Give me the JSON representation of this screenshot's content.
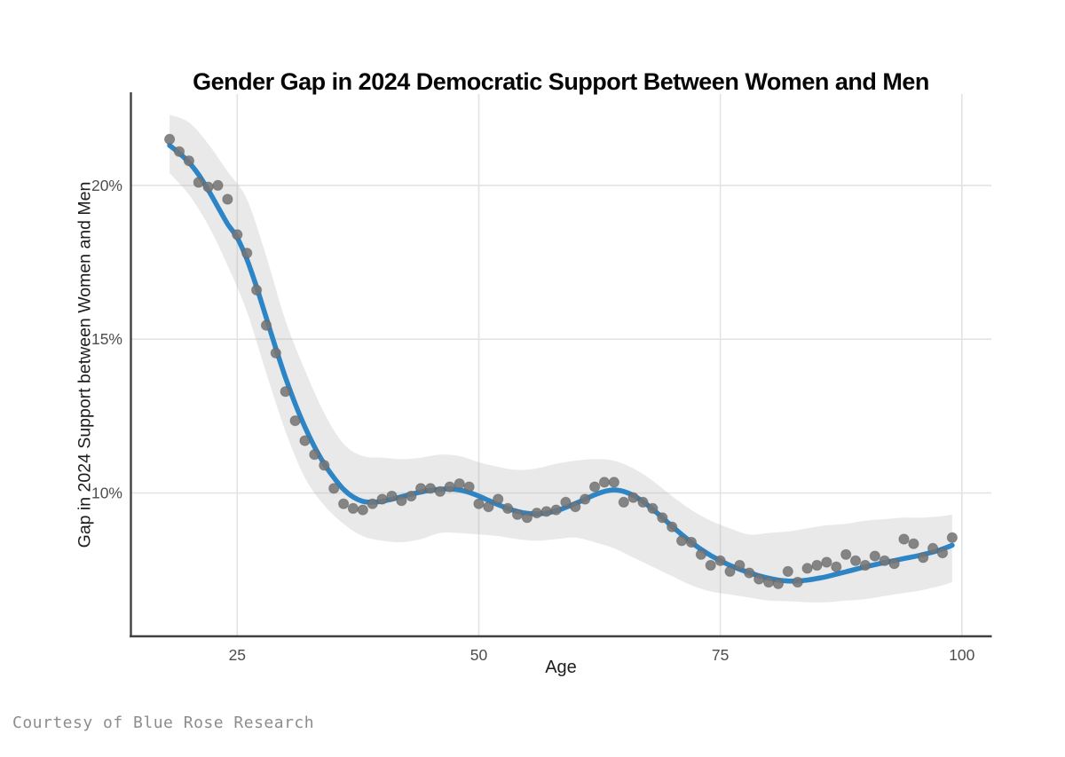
{
  "footer": "Courtesy of Blue Rose Research",
  "chart_data": {
    "type": "scatter",
    "subtype": "scatter-with-loess-smooth-and-confidence-band",
    "title": "Gender Gap in 2024 Democratic Support Between Women and Men",
    "xlabel": "Age",
    "ylabel": "Gap in 2024 Support between Women and Men",
    "legend_position": "none",
    "grid": true,
    "xlim": [
      13.95,
      103.05
    ],
    "ylim": [
      5.37,
      22.97
    ],
    "x_tick_values": [
      25,
      50,
      75,
      100
    ],
    "x_tick_labels": [
      "25",
      "50",
      "75",
      "100"
    ],
    "y_tick_values": [
      10,
      15,
      20
    ],
    "y_tick_labels": [
      "10%",
      "15%",
      "20%"
    ],
    "ages": [
      18,
      19,
      20,
      21,
      22,
      23,
      24,
      25,
      26,
      27,
      28,
      29,
      30,
      31,
      32,
      33,
      34,
      35,
      36,
      37,
      38,
      39,
      40,
      41,
      42,
      43,
      44,
      45,
      46,
      47,
      48,
      49,
      50,
      51,
      52,
      53,
      54,
      55,
      56,
      57,
      58,
      59,
      60,
      61,
      62,
      63,
      64,
      65,
      66,
      67,
      68,
      69,
      70,
      71,
      72,
      73,
      74,
      75,
      76,
      77,
      78,
      79,
      80,
      81,
      82,
      83,
      84,
      85,
      86,
      87,
      88,
      89,
      90,
      91,
      92,
      93,
      94,
      95,
      96,
      97,
      98,
      99
    ],
    "scatter_values_pct": [
      21.5,
      21.1,
      20.8,
      20.1,
      19.95,
      20.0,
      19.55,
      18.4,
      17.8,
      16.6,
      15.45,
      14.55,
      13.3,
      12.35,
      11.7,
      11.25,
      10.9,
      10.15,
      9.65,
      9.5,
      9.45,
      9.65,
      9.8,
      9.9,
      9.75,
      9.9,
      10.15,
      10.15,
      10.05,
      10.2,
      10.3,
      10.2,
      9.65,
      9.55,
      9.8,
      9.5,
      9.3,
      9.2,
      9.35,
      9.4,
      9.45,
      9.7,
      9.55,
      9.8,
      10.2,
      10.35,
      10.35,
      9.7,
      9.85,
      9.7,
      9.5,
      9.2,
      8.9,
      8.45,
      8.4,
      8.0,
      7.65,
      7.8,
      7.45,
      7.65,
      7.4,
      7.2,
      7.1,
      7.05,
      7.45,
      7.1,
      7.55,
      7.65,
      7.75,
      7.6,
      8.0,
      7.8,
      7.65,
      7.95,
      7.8,
      7.7,
      8.5,
      8.35,
      7.9,
      8.2,
      8.05,
      8.55
    ],
    "smooth_line_pct": [
      21.3,
      21.05,
      20.75,
      20.35,
      19.85,
      19.3,
      18.75,
      18.3,
      17.6,
      16.7,
      15.7,
      14.7,
      13.75,
      12.9,
      12.15,
      11.5,
      10.95,
      10.5,
      10.12,
      9.87,
      9.73,
      9.7,
      9.73,
      9.8,
      9.88,
      9.96,
      10.03,
      10.09,
      10.12,
      10.13,
      10.1,
      10.02,
      9.9,
      9.76,
      9.62,
      9.5,
      9.4,
      9.34,
      9.32,
      9.35,
      9.42,
      9.53,
      9.66,
      9.8,
      9.94,
      10.05,
      10.1,
      10.05,
      9.92,
      9.72,
      9.47,
      9.2,
      8.92,
      8.65,
      8.4,
      8.17,
      7.97,
      7.8,
      7.65,
      7.52,
      7.41,
      7.31,
      7.23,
      7.17,
      7.14,
      7.14,
      7.17,
      7.22,
      7.28,
      7.36,
      7.44,
      7.52,
      7.6,
      7.67,
      7.74,
      7.8,
      7.87,
      7.93,
      8.0,
      8.08,
      8.18,
      8.3
    ],
    "confidence_band": {
      "ages": [
        18,
        20,
        22,
        24,
        26,
        28,
        30,
        32,
        34,
        36,
        38,
        40,
        42,
        44,
        46,
        48,
        50,
        52,
        54,
        56,
        58,
        60,
        62,
        64,
        66,
        68,
        70,
        72,
        74,
        76,
        78,
        80,
        82,
        84,
        86,
        88,
        90,
        92,
        94,
        96,
        98,
        99
      ],
      "upper_pct": [
        22.3,
        22.05,
        21.35,
        20.45,
        19.55,
        17.7,
        15.6,
        14.0,
        12.6,
        11.6,
        11.2,
        11.15,
        11.1,
        11.15,
        11.25,
        11.2,
        11.0,
        10.85,
        10.75,
        10.8,
        10.95,
        11.05,
        11.1,
        11.05,
        10.8,
        10.4,
        9.9,
        9.45,
        9.1,
        8.85,
        8.65,
        8.7,
        8.75,
        8.85,
        8.95,
        9.0,
        9.1,
        9.15,
        9.2,
        9.2,
        9.25,
        9.3
      ],
      "lower_pct": [
        20.4,
        19.7,
        18.7,
        17.4,
        15.9,
        13.9,
        12.0,
        10.5,
        9.6,
        9.0,
        8.6,
        8.45,
        8.4,
        8.5,
        8.7,
        8.7,
        8.65,
        8.6,
        8.5,
        8.45,
        8.5,
        8.55,
        8.4,
        8.2,
        7.9,
        7.6,
        7.3,
        7.0,
        6.8,
        6.7,
        6.6,
        6.5,
        6.48,
        6.45,
        6.45,
        6.5,
        6.55,
        6.65,
        6.75,
        6.85,
        7.0,
        7.1
      ]
    },
    "colors": {
      "smooth_line": "#2e85c6",
      "scatter_points": "#757575",
      "confidence_band": "rgba(176,176,176,0.28)",
      "gridline": "#e3e3e3",
      "axis_line": "#414141",
      "tick_label": "#4d4d4d",
      "axis_title": "#1c1c1c",
      "title": "#060606",
      "footer": "#8d8d8d",
      "background": "#ffffff"
    }
  }
}
